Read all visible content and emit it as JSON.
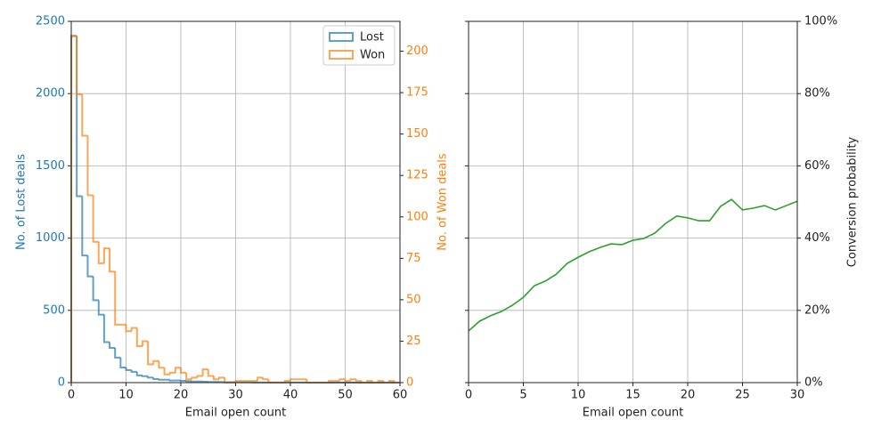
{
  "chart_data": [
    {
      "type": "histogram",
      "xlabel": "Email open count",
      "ylabel": "No. of Lost deals",
      "y2label": "No. of Won deals",
      "bins": [
        0,
        1,
        2,
        3,
        4,
        5,
        6,
        7,
        8,
        9,
        10,
        11,
        12,
        13,
        14,
        15,
        16,
        17,
        18,
        19,
        20,
        21,
        22,
        23,
        24,
        25,
        26,
        27,
        28,
        29,
        30,
        31,
        32,
        33,
        34,
        35,
        36,
        37,
        38,
        39,
        40,
        41,
        42,
        43,
        44,
        45,
        46,
        47,
        48,
        49,
        50,
        51,
        52,
        53,
        54,
        55,
        56,
        57,
        58,
        59,
        60
      ],
      "series": [
        {
          "name": "Lost",
          "color": "#1f77b4",
          "values": [
            2400,
            1290,
            880,
            735,
            570,
            470,
            280,
            240,
            173,
            105,
            87,
            75,
            50,
            45,
            35,
            25,
            20,
            20,
            15,
            15,
            12,
            10,
            8,
            8,
            6,
            5,
            5,
            4,
            3,
            3,
            2,
            2,
            2,
            1,
            1,
            1,
            1,
            1,
            1,
            1,
            1,
            1,
            1,
            0,
            0,
            0,
            0,
            0,
            0,
            0,
            0,
            0,
            0,
            0,
            0,
            0,
            0,
            0,
            0,
            0
          ]
        },
        {
          "name": "Won",
          "color": "#ff7f0e",
          "axis": "y2",
          "values": [
            209,
            174,
            149,
            113,
            85,
            72,
            81,
            67,
            35,
            35,
            31,
            33,
            22,
            25,
            11,
            13,
            9,
            5,
            6,
            9,
            6,
            2,
            3,
            4,
            8,
            4,
            2,
            3,
            0,
            0,
            1,
            1,
            1,
            1,
            3,
            2,
            0,
            0,
            0,
            1,
            2,
            2,
            2,
            0,
            0,
            0,
            0,
            1,
            1,
            2,
            1,
            2,
            1,
            0,
            1,
            0,
            1,
            0,
            1,
            0
          ]
        }
      ],
      "xlim": [
        0,
        60
      ],
      "xticks": [
        0,
        10,
        20,
        30,
        40,
        50,
        60
      ],
      "ylim": [
        0,
        2500
      ],
      "yticks": [
        0,
        500,
        1000,
        1500,
        2000,
        2500
      ],
      "y2lim": [
        0,
        218
      ],
      "y2ticks": [
        0,
        25,
        50,
        75,
        100,
        125,
        150,
        175,
        200
      ],
      "grid": true,
      "legend": "upper right"
    },
    {
      "type": "line",
      "xlabel": "Email open count",
      "ylabel": "Conversion probability",
      "y_axis": "right",
      "x": [
        0,
        1,
        2,
        3,
        4,
        5,
        6,
        7,
        8,
        9,
        10,
        11,
        12,
        13,
        14,
        15,
        16,
        17,
        18,
        19,
        20,
        21,
        22,
        23,
        24,
        25,
        26,
        27,
        28,
        29,
        30
      ],
      "values": [
        14.3,
        17,
        18.5,
        19.7,
        21.4,
        23.6,
        26.8,
        28.1,
        30,
        33,
        34.7,
        36.2,
        37.4,
        38.4,
        38.2,
        39.4,
        39.9,
        41.4,
        44.1,
        46.1,
        45.6,
        44.8,
        44.8,
        48.8,
        50.7,
        47.8,
        48.3,
        49,
        47.8,
        49,
        50.2
      ],
      "color": "#2ca02c",
      "xlim": [
        0,
        30
      ],
      "xticks": [
        0,
        5,
        10,
        15,
        20,
        25,
        30
      ],
      "ylim": [
        0,
        100
      ],
      "yticks": [
        {
          "value": 0,
          "label": "0%"
        },
        {
          "value": 20,
          "label": "20%"
        },
        {
          "value": 40,
          "label": "40%"
        },
        {
          "value": 60,
          "label": "60%"
        },
        {
          "value": 80,
          "label": "80%"
        },
        {
          "value": 100,
          "label": "100%"
        }
      ],
      "grid": true
    }
  ]
}
